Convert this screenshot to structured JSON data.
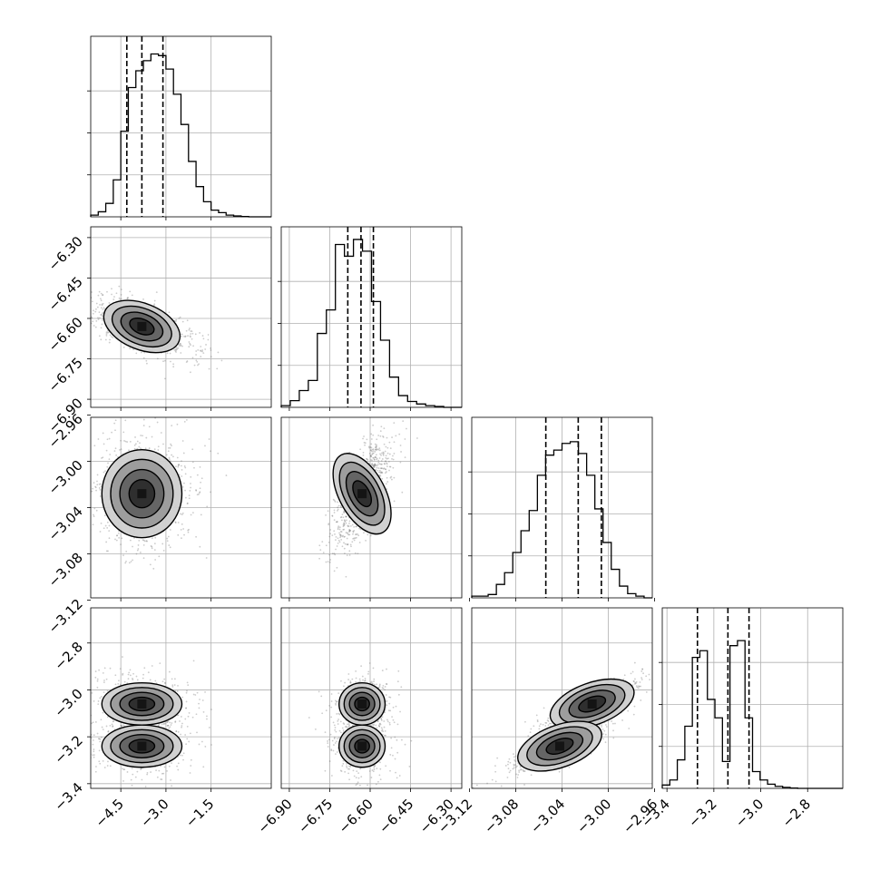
{
  "chart_data": {
    "type": "corner",
    "colors": {
      "axes": "#000000",
      "grid": "#b0b0b0",
      "scatter": "#6e6e6e",
      "density_low": "#e6e6e6",
      "density_high": "#000000"
    },
    "grid": true,
    "parameters": [
      {
        "range": [
          -5.5,
          0.5
        ],
        "ticks": [
          -4.5,
          -3.0,
          -1.5
        ],
        "tick_labels": [
          "−4.5",
          "−3.0",
          "−1.5"
        ],
        "center": -3.8,
        "sd": 0.7,
        "quantiles": [
          -4.3,
          -3.8,
          -3.1
        ]
      },
      {
        "range": [
          -6.93,
          -6.26
        ],
        "ticks": [
          -6.9,
          -6.75,
          -6.6,
          -6.45,
          -6.3
        ],
        "tick_labels": [
          "−6.90",
          "−6.75",
          "−6.60",
          "−6.45",
          "−6.30"
        ],
        "center": -6.63,
        "sd": 0.045,
        "quantiles": [
          -6.683,
          -6.634,
          -6.588
        ]
      },
      {
        "range": [
          -3.118,
          -2.962
        ],
        "ticks": [
          -3.12,
          -3.08,
          -3.04,
          -3.0,
          -2.96
        ],
        "tick_labels": [
          "−3.12",
          "−3.08",
          "−3.04",
          "−3.00",
          "−2.96"
        ],
        "center": -3.028,
        "sd": 0.02,
        "quantiles": [
          -3.054,
          -3.026,
          -3.006
        ]
      },
      {
        "range": [
          -3.42,
          -2.65
        ],
        "ticks": [
          -3.4,
          -3.2,
          -3.0,
          -2.8
        ],
        "tick_labels": [
          "−3.4",
          "−3.2",
          "−3.0",
          "−2.8"
        ],
        "center": -3.15,
        "sd": 0.1,
        "quantiles": [
          -3.27,
          -3.14,
          -3.05
        ]
      }
    ],
    "histograms": [
      [
        0.01,
        0.03,
        0.08,
        0.22,
        0.51,
        0.77,
        0.87,
        0.93,
        0.97,
        0.96,
        0.88,
        0.73,
        0.55,
        0.33,
        0.18,
        0.09,
        0.04,
        0.025,
        0.01,
        0.005,
        0.002,
        0,
        0,
        0
      ],
      [
        0.01,
        0.04,
        0.1,
        0.16,
        0.44,
        0.58,
        0.97,
        0.9,
        1.0,
        0.93,
        0.63,
        0.4,
        0.18,
        0.07,
        0.035,
        0.02,
        0.01,
        0.005,
        0,
        0
      ],
      [
        0.01,
        0.01,
        0.02,
        0.08,
        0.15,
        0.27,
        0.4,
        0.52,
        0.73,
        0.85,
        0.88,
        0.92,
        0.93,
        0.86,
        0.73,
        0.53,
        0.33,
        0.17,
        0.07,
        0.025,
        0.01,
        0
      ],
      [
        0.02,
        0.05,
        0.17,
        0.37,
        0.78,
        0.82,
        0.53,
        0.42,
        0.16,
        0.85,
        0.88,
        0.42,
        0.1,
        0.05,
        0.025,
        0.012,
        0.006,
        0.002,
        0,
        0,
        0,
        0,
        0,
        0
      ]
    ],
    "pairs": [
      {
        "row": 1,
        "col": 0,
        "rho": -0.55
      },
      {
        "row": 2,
        "col": 0,
        "rho": 0.0
      },
      {
        "row": 2,
        "col": 1,
        "rho": 0.7
      },
      {
        "row": 3,
        "col": 0,
        "rho": 0.0,
        "bimodal": true
      },
      {
        "row": 3,
        "col": 1,
        "rho": 0.0,
        "bimodal": true
      },
      {
        "row": 3,
        "col": 2,
        "rho": 0.85,
        "bimodal": true
      }
    ]
  }
}
